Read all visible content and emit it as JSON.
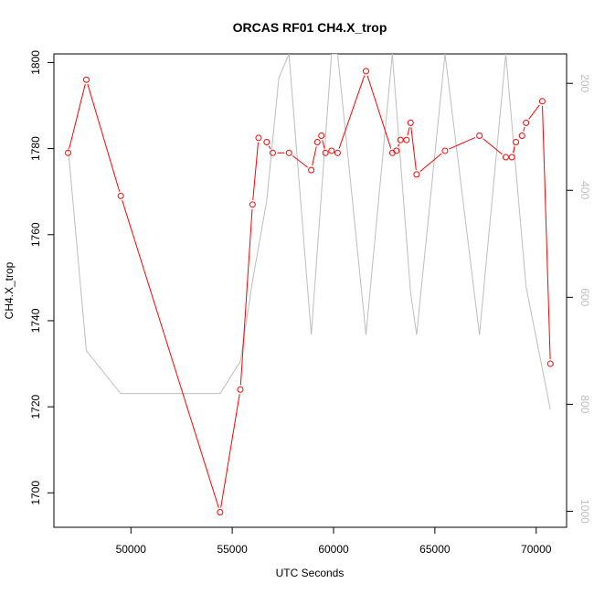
{
  "chart_data": {
    "type": "line",
    "title": "ORCAS RF01 CH4.X_trop",
    "xlabel": "UTC Seconds",
    "ylabel": "CH4.X_trop",
    "xlim": [
      46200,
      71500
    ],
    "ylim": [
      1692,
      1802
    ],
    "x_ticks": [
      50000,
      55000,
      60000,
      65000,
      70000
    ],
    "y_ticks": [
      1700,
      1720,
      1740,
      1760,
      1780,
      1800
    ],
    "y2lim": [
      1030,
      145
    ],
    "y2_ticks": [
      200,
      400,
      600,
      800,
      1000
    ],
    "series": [
      {
        "color": "#ff0000",
        "marker": "open-circle",
        "axis": "left",
        "x": [
          46900,
          47800,
          49500,
          54400,
          55400,
          56000,
          56300,
          56700,
          57000,
          57800,
          58900,
          59200,
          59400,
          59600,
          59900,
          60200,
          61600,
          62900,
          63100,
          63300,
          63600,
          63800,
          64100,
          65500,
          67200,
          68500,
          68800,
          69000,
          69300,
          69500,
          70300,
          70700
        ],
        "y": [
          1779,
          1796,
          1769,
          1695.5,
          1724,
          1767,
          1782.5,
          1781.5,
          1779,
          1779,
          1775,
          1781.5,
          1783,
          1779,
          1779.5,
          1779,
          1798,
          1779,
          1779.5,
          1782,
          1782,
          1786,
          1774,
          1779.5,
          1783,
          1778,
          1778,
          1781.5,
          1783,
          1786,
          1791,
          1730
        ]
      },
      {
        "color": "#bebebe",
        "marker": "none",
        "axis": "right",
        "x": [
          46900,
          47800,
          49500,
          54400,
          55400,
          56000,
          56700,
          57300,
          57800,
          58900,
          59900,
          60200,
          61600,
          62900,
          63800,
          64100,
          65500,
          67200,
          68500,
          69500,
          70700
        ],
        "y": [
          320,
          700,
          780,
          780,
          720,
          570,
          420,
          190,
          145,
          670,
          145,
          145,
          670,
          145,
          590,
          670,
          145,
          670,
          145,
          580,
          810
        ]
      }
    ]
  }
}
